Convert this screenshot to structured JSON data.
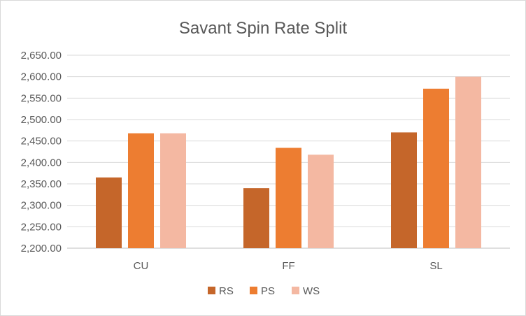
{
  "chart_data": {
    "type": "bar",
    "title": "Savant Spin Rate Split",
    "categories": [
      "CU",
      "FF",
      "SL"
    ],
    "series": [
      {
        "name": "RS",
        "color": "#c5662a",
        "values": [
          2365,
          2340,
          2470
        ]
      },
      {
        "name": "PS",
        "color": "#ed7d31",
        "values": [
          2468,
          2434,
          2572
        ]
      },
      {
        "name": "WS",
        "color": "#f4b8a2",
        "values": [
          2468,
          2418,
          2600
        ]
      }
    ],
    "y_ticks": [
      "2,200.00",
      "2,250.00",
      "2,300.00",
      "2,350.00",
      "2,400.00",
      "2,450.00",
      "2,500.00",
      "2,550.00",
      "2,600.00",
      "2,650.00"
    ],
    "ylim": [
      2200,
      2650
    ],
    "grid": true,
    "legend_position": "bottom",
    "xlabel": "",
    "ylabel": ""
  }
}
